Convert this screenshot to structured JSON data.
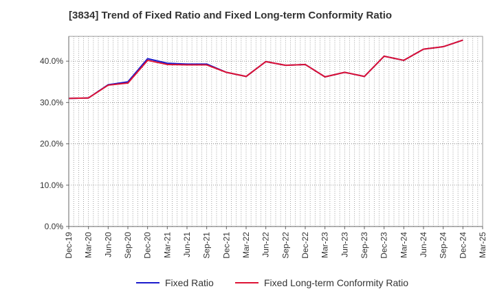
{
  "chart_data": {
    "type": "line",
    "title": "[3834]  Trend of Fixed Ratio and Fixed Long-term Conformity Ratio",
    "xlabel": "",
    "ylabel": "",
    "categories": [
      "Dec-19",
      "Mar-20",
      "Jun-20",
      "Sep-20",
      "Dec-20",
      "Mar-21",
      "Jun-21",
      "Sep-21",
      "Dec-21",
      "Mar-22",
      "Jun-22",
      "Sep-22",
      "Dec-22",
      "Mar-23",
      "Jun-23",
      "Sep-23",
      "Dec-23",
      "Mar-24",
      "Jun-24",
      "Sep-24",
      "Dec-24",
      "Mar-25"
    ],
    "ylim": [
      0,
      46
    ],
    "yticks": [
      0,
      10,
      20,
      30,
      40
    ],
    "ytick_labels": [
      "0.0%",
      "10.0%",
      "20.0%",
      "30.0%",
      "40.0%"
    ],
    "grid": true,
    "legend_position": "bottom",
    "series": [
      {
        "name": "Fixed Ratio",
        "color": "#1a1acc",
        "values": [
          31.0,
          31.1,
          34.3,
          35.0,
          40.6,
          39.5,
          39.3,
          39.3,
          37.3,
          36.3,
          39.9,
          39.0,
          39.2,
          36.2,
          37.3,
          36.3,
          41.2,
          40.2,
          42.9,
          43.5,
          45.1,
          null
        ]
      },
      {
        "name": "Fixed Long-term Conformity Ratio",
        "color": "#dd1133",
        "values": [
          31.0,
          31.1,
          34.2,
          34.7,
          40.2,
          39.2,
          39.1,
          39.1,
          37.3,
          36.3,
          39.9,
          39.0,
          39.2,
          36.2,
          37.3,
          36.3,
          41.2,
          40.2,
          42.9,
          43.5,
          45.1,
          null
        ]
      }
    ]
  }
}
